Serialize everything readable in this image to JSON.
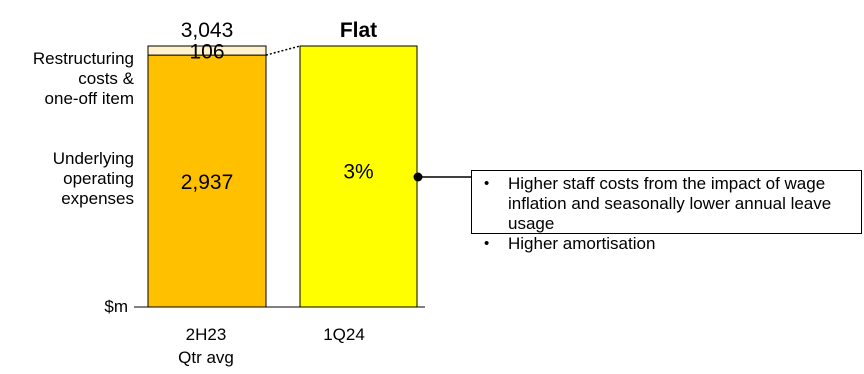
{
  "chart_data": {
    "type": "bar",
    "unit_label": "$m",
    "categories": [
      "2H23 Qtr avg",
      "1Q24"
    ],
    "category_lines": [
      [
        "2H23",
        "Qtr avg"
      ],
      [
        "1Q24"
      ]
    ],
    "series": [
      {
        "name": "Underlying operating expenses",
        "label_lines": [
          "Underlying",
          "operating",
          "expenses"
        ],
        "values": [
          2937,
          null
        ],
        "color": "#FFC000",
        "data_label": "2,937"
      },
      {
        "name": "Restructuring costs & one-off item",
        "label_lines": [
          "Restructuring",
          "costs &",
          "one-off item"
        ],
        "values": [
          106,
          null
        ],
        "color": "#FFF2CC",
        "data_label": "106"
      }
    ],
    "totals": [
      {
        "category": "2H23 Qtr avg",
        "value": 3043,
        "label": "3,043"
      }
    ],
    "comparison": {
      "category": "1Q24",
      "value": 3043,
      "header": "Flat",
      "inner_label": "3%",
      "color": "#FFFF00"
    },
    "ylim": [
      0,
      3043
    ]
  },
  "callout": {
    "bullets": [
      "Higher staff costs from the impact of wage inflation and seasonally lower annual leave usage",
      "Higher amortisation"
    ]
  }
}
